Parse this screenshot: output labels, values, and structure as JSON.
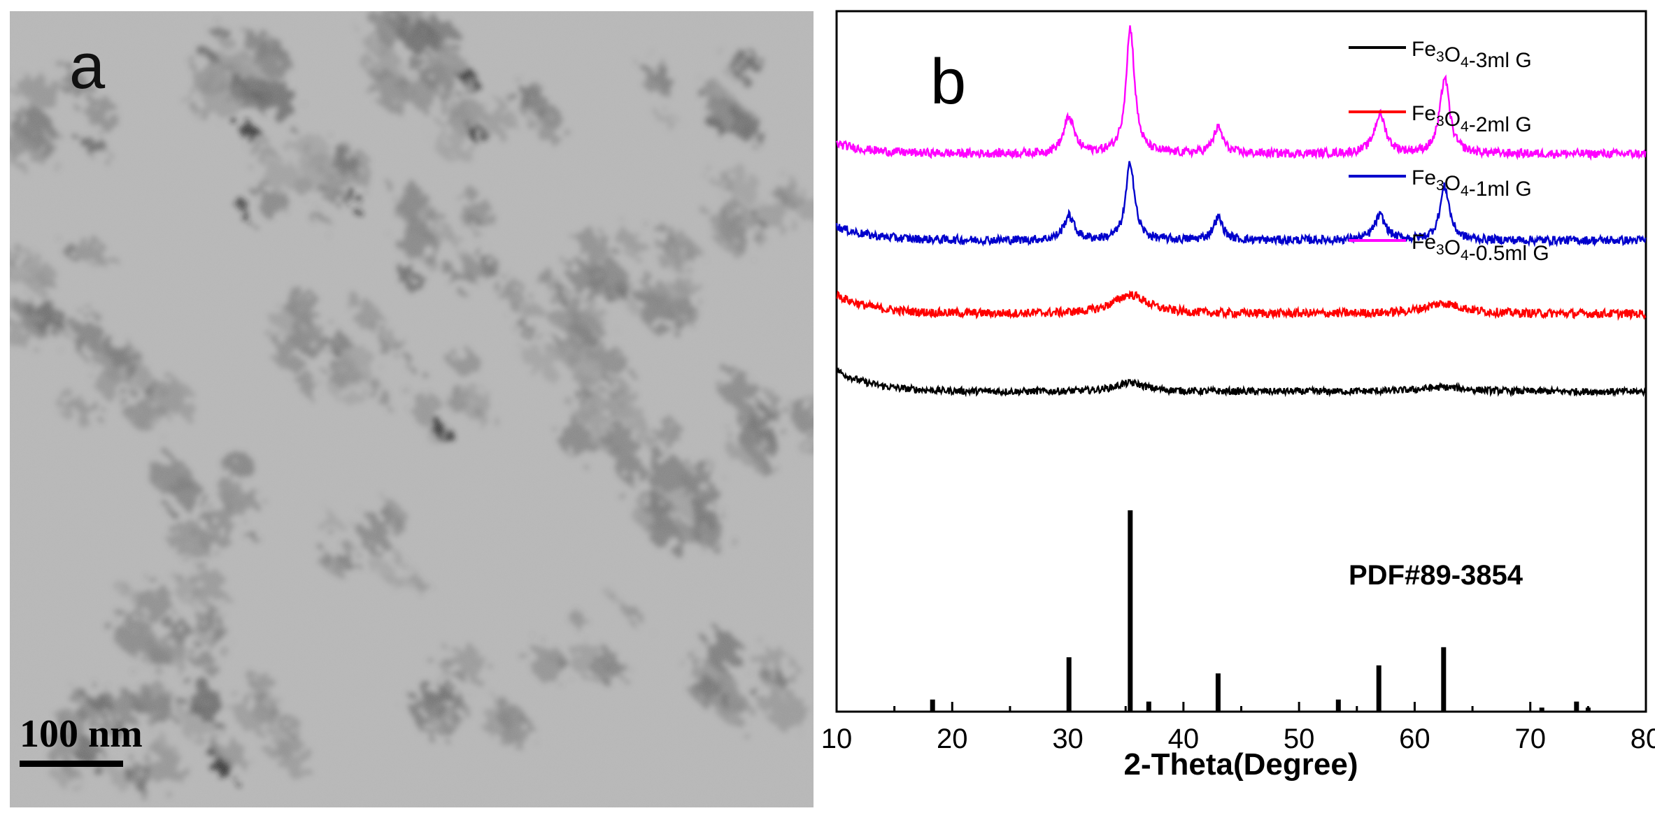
{
  "panel_a": {
    "letter": "a",
    "scale_bar_label": "100 nm",
    "image_kind": "TEM micrograph of nanoparticle aggregates"
  },
  "chart_data": {
    "type": "line",
    "panel_letter": "b",
    "title": "",
    "xlabel": "2-Theta(Degree)",
    "ylabel": "",
    "xlim": [
      10,
      80
    ],
    "xticks": [
      10,
      20,
      30,
      40,
      50,
      60,
      70,
      80
    ],
    "legend_placement": "top-right",
    "grid": false,
    "y_axis_visible": false,
    "series": [
      {
        "name": "Fe3O4-3ml G",
        "legend": {
          "a": "Fe",
          "s1": "3",
          "b": "O",
          "s2": "4",
          "c": "-3ml G"
        },
        "color": "#000000",
        "baseline": 0.3,
        "start_rise": 0.25,
        "noise": 0.04,
        "peaks": [
          [
            35.4,
            0.1,
            1.6
          ],
          [
            62.5,
            0.05,
            2.5
          ]
        ]
      },
      {
        "name": "Fe3O4-2ml G",
        "legend": {
          "a": "Fe",
          "s1": "3",
          "b": "O",
          "s2": "4",
          "c": "-2ml G"
        },
        "color": "#ff0000",
        "baseline": 1.2,
        "start_rise": 0.22,
        "noise": 0.05,
        "peaks": [
          [
            35.4,
            0.22,
            1.8
          ],
          [
            62.5,
            0.12,
            2.0
          ]
        ]
      },
      {
        "name": "Fe3O4-1ml G",
        "legend": {
          "a": "Fe",
          "s1": "3",
          "b": "O",
          "s2": "4",
          "c": "-1ml G"
        },
        "color": "#0000cc",
        "baseline": 2.05,
        "start_rise": 0.16,
        "noise": 0.05,
        "peaks": [
          [
            30.1,
            0.28,
            0.55
          ],
          [
            35.4,
            0.9,
            0.45
          ],
          [
            43.0,
            0.26,
            0.5
          ],
          [
            57.0,
            0.28,
            0.6
          ],
          [
            62.6,
            0.62,
            0.5
          ]
        ]
      },
      {
        "name": "Fe3O4-0.5ml G",
        "legend": {
          "a": "Fe",
          "s1": "3",
          "b": "O",
          "s2": "4",
          "c": "-0.5ml G"
        },
        "color": "#ff00ff",
        "baseline": 3.05,
        "start_rise": 0.12,
        "noise": 0.05,
        "peaks": [
          [
            30.1,
            0.42,
            0.55
          ],
          [
            35.4,
            1.45,
            0.45
          ],
          [
            43.0,
            0.3,
            0.5
          ],
          [
            57.0,
            0.45,
            0.6
          ],
          [
            62.6,
            0.88,
            0.5
          ]
        ]
      }
    ],
    "reference": {
      "label": "PDF#89-3854",
      "lines": [
        {
          "x": 18.3,
          "h": 0.06
        },
        {
          "x": 30.1,
          "h": 0.27
        },
        {
          "x": 35.4,
          "h": 1.0
        },
        {
          "x": 37.0,
          "h": 0.05
        },
        {
          "x": 43.0,
          "h": 0.19
        },
        {
          "x": 53.4,
          "h": 0.06
        },
        {
          "x": 56.9,
          "h": 0.23
        },
        {
          "x": 62.5,
          "h": 0.32
        },
        {
          "x": 71.0,
          "h": 0.02
        },
        {
          "x": 74.0,
          "h": 0.05
        },
        {
          "x": 75.0,
          "h": 0.02
        }
      ]
    }
  },
  "colors": {
    "background": "#ffffff",
    "axis": "#000000"
  }
}
